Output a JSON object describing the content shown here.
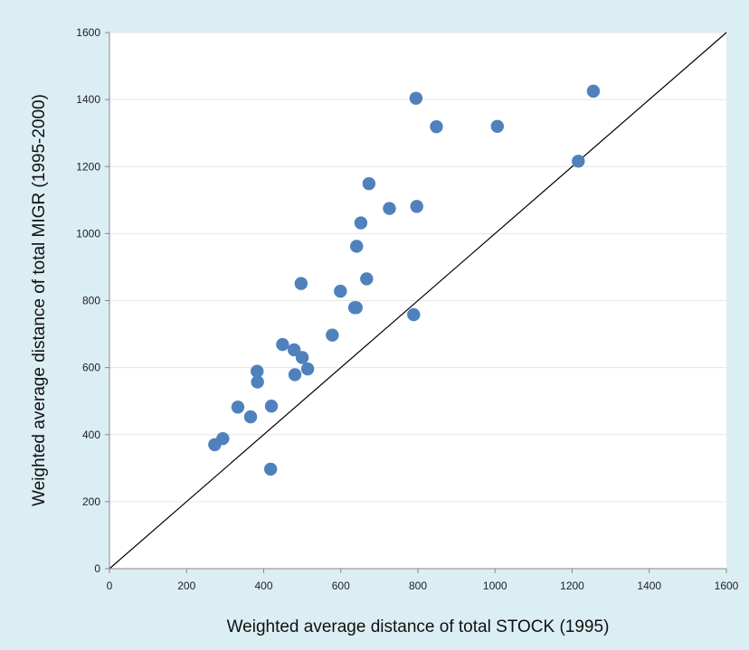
{
  "chart_data": {
    "type": "scatter",
    "title": "",
    "xlabel": "Weighted average distance of total STOCK (1995)",
    "ylabel": "Weighted average distance of total MIGR (1995-2000)",
    "xlim": [
      0,
      1600
    ],
    "ylim": [
      0,
      1600
    ],
    "x_ticks": [
      "0",
      "200",
      "400",
      "600",
      "800",
      "1000",
      "1200",
      "1400",
      "1600"
    ],
    "y_ticks": [
      "0",
      "200",
      "400",
      "600",
      "800",
      "1000",
      "1200",
      "1400",
      "1600"
    ],
    "grid": "horizontal",
    "legend": "none",
    "reference_line": {
      "from": [
        0,
        0
      ],
      "to": [
        1600,
        1600
      ],
      "color": "#000000"
    },
    "marker_color": "#4f81bd",
    "background_color": "#dbeef3",
    "series": [
      {
        "points": [
          {
            "x": 273,
            "y": 370
          },
          {
            "x": 294,
            "y": 388
          },
          {
            "x": 333,
            "y": 482
          },
          {
            "x": 366,
            "y": 453
          },
          {
            "x": 383,
            "y": 589
          },
          {
            "x": 384,
            "y": 557
          },
          {
            "x": 418,
            "y": 297
          },
          {
            "x": 420,
            "y": 485
          },
          {
            "x": 449,
            "y": 669
          },
          {
            "x": 479,
            "y": 653
          },
          {
            "x": 481,
            "y": 579
          },
          {
            "x": 497,
            "y": 851
          },
          {
            "x": 500,
            "y": 630
          },
          {
            "x": 514,
            "y": 596
          },
          {
            "x": 578,
            "y": 697
          },
          {
            "x": 599,
            "y": 828
          },
          {
            "x": 636,
            "y": 779
          },
          {
            "x": 640,
            "y": 779
          },
          {
            "x": 641,
            "y": 962
          },
          {
            "x": 652,
            "y": 1032
          },
          {
            "x": 667,
            "y": 865
          },
          {
            "x": 673,
            "y": 1149
          },
          {
            "x": 726,
            "y": 1075
          },
          {
            "x": 789,
            "y": 758
          },
          {
            "x": 795,
            "y": 1404
          },
          {
            "x": 797,
            "y": 1081
          },
          {
            "x": 848,
            "y": 1319
          },
          {
            "x": 1006,
            "y": 1320
          },
          {
            "x": 1216,
            "y": 1216
          },
          {
            "x": 1255,
            "y": 1425
          }
        ]
      }
    ]
  }
}
